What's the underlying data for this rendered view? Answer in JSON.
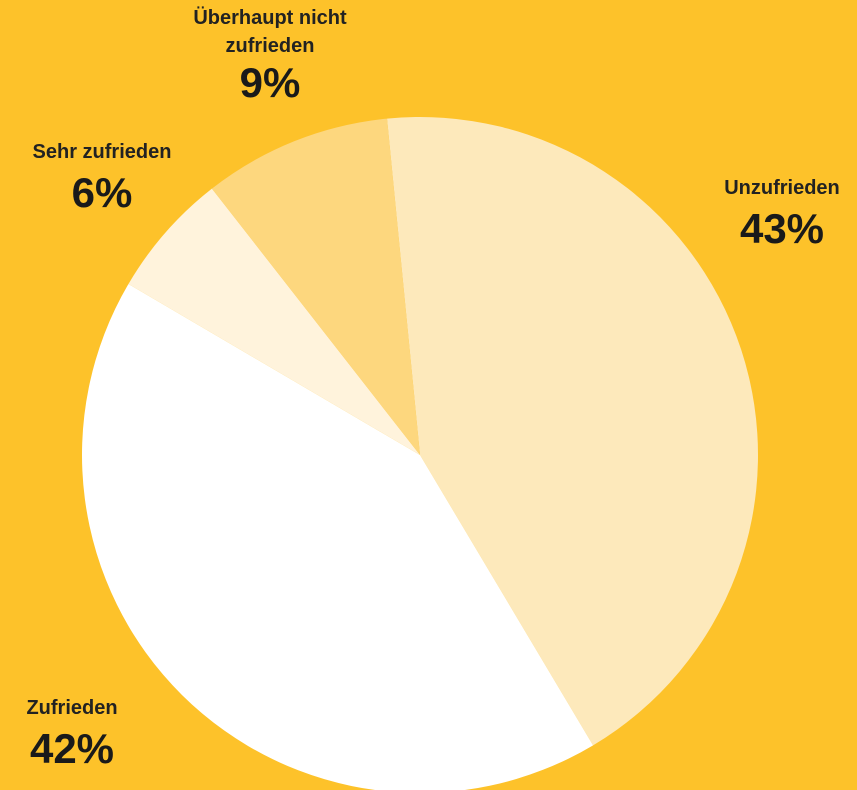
{
  "chart_data": {
    "type": "pie",
    "categories": [
      "Unzufrieden",
      "Zufrieden",
      "Sehr zufrieden",
      "Überhaupt nicht zufrieden"
    ],
    "values": [
      43,
      42,
      6,
      9
    ],
    "value_labels": [
      "43%",
      "42%",
      "6%",
      "9%"
    ],
    "colors": [
      "#fde9bb",
      "#ffffff",
      "#fff3dc",
      "#fdd77e"
    ],
    "background": "#fdc22a"
  }
}
